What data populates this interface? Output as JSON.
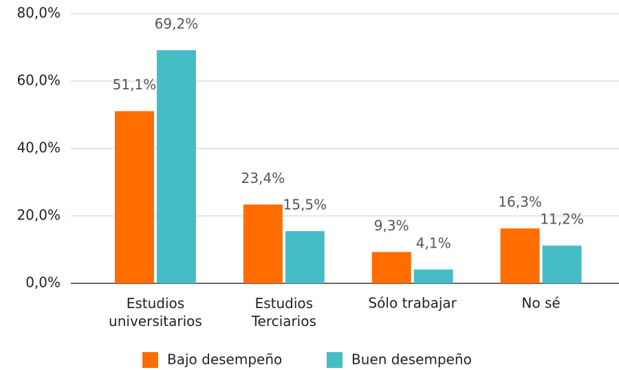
{
  "chart_data": {
    "type": "bar",
    "categories": [
      "Estudios\nuniversitarios",
      "Estudios\nTerciarios",
      "Sólo trabajar",
      "No sé"
    ],
    "series": [
      {
        "name": "Bajo desempeño",
        "color": "#ff6d00",
        "values": [
          51.1,
          23.4,
          9.3,
          16.3
        ],
        "value_labels": [
          "51,1%",
          "23,4%",
          "9,3%",
          "16,3%"
        ]
      },
      {
        "name": "Buen desempeño",
        "color": "#46bdc6",
        "values": [
          69.2,
          15.5,
          4.1,
          11.2
        ],
        "value_labels": [
          "69,2%",
          "15,5%",
          "4,1%",
          "11,2%"
        ]
      }
    ],
    "ylim": [
      0,
      80
    ],
    "yticks": [
      {
        "value": 0,
        "label": "0,0%"
      },
      {
        "value": 20,
        "label": "20,0%"
      },
      {
        "value": 40,
        "label": "40,0%"
      },
      {
        "value": 60,
        "label": "60,0%"
      },
      {
        "value": 80,
        "label": "80,0%"
      }
    ],
    "grid": true,
    "legend": "bottom"
  }
}
